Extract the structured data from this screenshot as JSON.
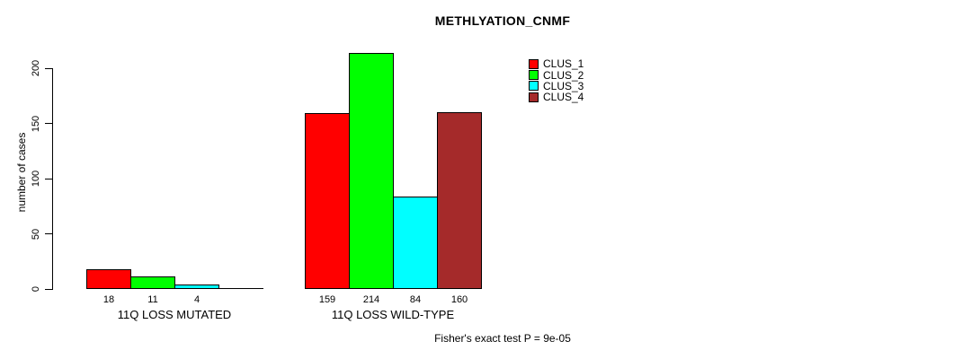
{
  "chart_data": {
    "type": "bar",
    "title": "METHLYATION_CNMF",
    "ylabel": "number of cases",
    "ylim": [
      0,
      200
    ],
    "yticks": [
      0,
      50,
      100,
      150,
      200
    ],
    "grid": false,
    "legend_position": "top-right",
    "categories": [
      "11Q LOSS MUTATED",
      "11Q LOSS WILD-TYPE"
    ],
    "series": [
      {
        "name": "CLUS_1",
        "color": "#FF0000",
        "values": [
          18,
          159
        ]
      },
      {
        "name": "CLUS_2",
        "color": "#00FF00",
        "values": [
          11,
          214
        ]
      },
      {
        "name": "CLUS_3",
        "color": "#00FFFF",
        "values": [
          4,
          84
        ]
      },
      {
        "name": "CLUS_4",
        "color": "#A52A2A",
        "values": [
          0,
          160
        ]
      }
    ],
    "bar_value_labels": [
      [
        "18",
        "11",
        "4",
        ""
      ],
      [
        "159",
        "214",
        "84",
        "160"
      ]
    ],
    "annotation": "Fisher's exact test P = 9e-05"
  },
  "legend": {
    "items": [
      {
        "label": "CLUS_1",
        "color": "#FF0000"
      },
      {
        "label": "CLUS_2",
        "color": "#00FF00"
      },
      {
        "label": "CLUS_3",
        "color": "#00FFFF"
      },
      {
        "label": "CLUS_4",
        "color": "#A52A2A"
      }
    ]
  }
}
